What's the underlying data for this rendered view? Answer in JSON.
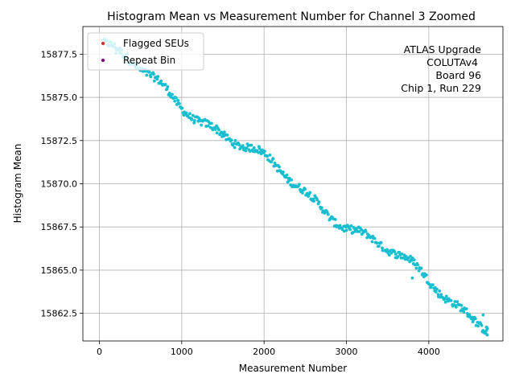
{
  "chart_data": {
    "type": "scatter",
    "title": "Histogram Mean vs Measurement Number for Channel 3 Zoomed",
    "xlabel": "Measurement Number",
    "ylabel": "Histogram Mean",
    "xlim": [
      -200,
      4900
    ],
    "ylim": [
      15860.9,
      15879.1
    ],
    "x_ticks": [
      0,
      1000,
      2000,
      3000,
      4000
    ],
    "x_tick_labels": [
      "0",
      "1000",
      "2000",
      "3000",
      "4000"
    ],
    "y_ticks": [
      15862.5,
      15865.0,
      15867.5,
      15870.0,
      15872.5,
      15875.0,
      15877.5
    ],
    "y_tick_labels": [
      "15862.5",
      "15865.0",
      "15867.5",
      "15870.0",
      "15872.5",
      "15875.0",
      "15877.5"
    ],
    "grid": true,
    "legend": {
      "placement": "top-left",
      "entries": [
        {
          "label": "Flagged SEUs",
          "color": "#d62728"
        },
        {
          "label": "Repeat Bin",
          "color": "#800080"
        }
      ]
    },
    "annotation": [
      "ATLAS Upgrade",
      "COLUTAv4",
      "Board 96",
      "Chip 1, Run 229"
    ],
    "series": [
      {
        "name": "Histogram Mean",
        "color": "#17becf",
        "trend": {
          "x0": 50,
          "y0": 15878.0,
          "x1": 4700,
          "y1": 15861.9
        },
        "x_range": [
          50,
          4710
        ],
        "n_points": 460,
        "noise": 0.22,
        "outliers": [
          [
            4710,
            15861.25
          ],
          [
            4700,
            15861.7
          ],
          [
            4660,
            15862.4
          ],
          [
            3800,
            15864.55
          ],
          [
            200,
            15877.55
          ]
        ]
      }
    ]
  }
}
